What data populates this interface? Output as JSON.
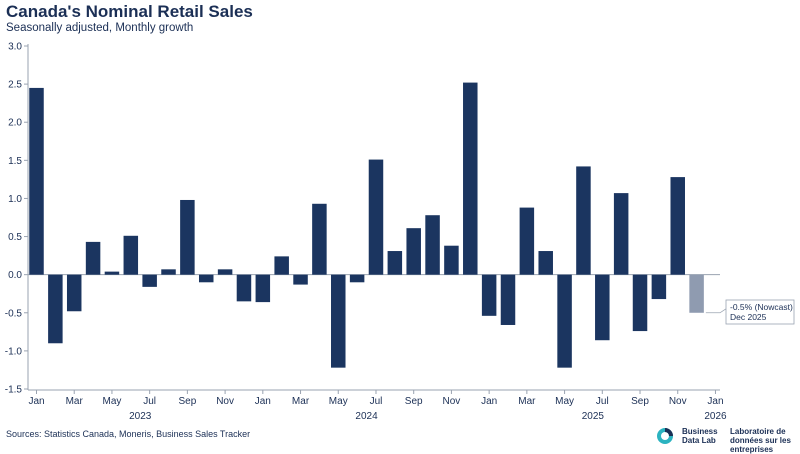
{
  "header": {
    "title": "Canada's Nominal Retail Sales",
    "subtitle": "Seasonally adjusted, Monthly growth"
  },
  "footer": {
    "source": "Sources: Statistics Canada, Moneris, Business Sales Tracker",
    "logo_en": "Business Data Lab",
    "logo_fr": "Laboratoire de données sur les entreprises"
  },
  "colors": {
    "actual": "#1b3560",
    "nowcast": "#8f9bb0",
    "axis": "#9aa3b1",
    "logo_teal": "#2bb3c0",
    "logo_navy": "#1b2f55"
  },
  "chart_data": {
    "type": "bar",
    "title": "Canada's Nominal Retail Sales",
    "subtitle": "Seasonally adjusted, Monthly growth",
    "ylim": [
      -1.5,
      3.0
    ],
    "yticks": [
      "3.0",
      "2.5",
      "2.0",
      "1.5",
      "1.0",
      "0.5",
      "0.0",
      "-0.5",
      "-1.0",
      "-1.5"
    ],
    "grid": false,
    "categories": [
      "2023-01",
      "2023-02",
      "2023-03",
      "2023-04",
      "2023-05",
      "2023-06",
      "2023-07",
      "2023-08",
      "2023-09",
      "2023-10",
      "2023-11",
      "2023-12",
      "2024-01",
      "2024-02",
      "2024-03",
      "2024-04",
      "2024-05",
      "2024-06",
      "2024-07",
      "2024-08",
      "2024-09",
      "2024-10",
      "2024-11",
      "2024-12",
      "2025-01",
      "2025-02",
      "2025-03",
      "2025-04",
      "2025-05",
      "2025-06",
      "2025-07",
      "2025-08",
      "2025-09",
      "2025-10",
      "2025-11",
      "2025-12"
    ],
    "values": [
      2.45,
      -0.9,
      -0.48,
      0.43,
      0.04,
      0.51,
      -0.16,
      0.07,
      0.98,
      -0.1,
      0.07,
      -0.35,
      -0.36,
      0.24,
      -0.13,
      0.93,
      -1.22,
      -0.1,
      1.51,
      0.31,
      0.61,
      0.78,
      0.38,
      2.52,
      -0.54,
      -0.66,
      0.88,
      0.31,
      -1.22,
      1.42,
      -0.86,
      1.07,
      -0.74,
      -0.32,
      1.28,
      -0.5
    ],
    "nowcast_index": 35,
    "month_tick_labels": [
      "Jan",
      "Mar",
      "May",
      "Jul",
      "Sep",
      "Nov",
      "Jan",
      "Mar",
      "May",
      "Jul",
      "Sep",
      "Nov",
      "Jan",
      "Mar",
      "May",
      "Jul",
      "Sep",
      "Nov",
      "Jan"
    ],
    "year_labels": [
      "2023",
      "2024",
      "2025",
      "2026"
    ],
    "annotation": {
      "line1": "-0.5% (Nowcast)",
      "line2": "Dec 2025"
    }
  }
}
